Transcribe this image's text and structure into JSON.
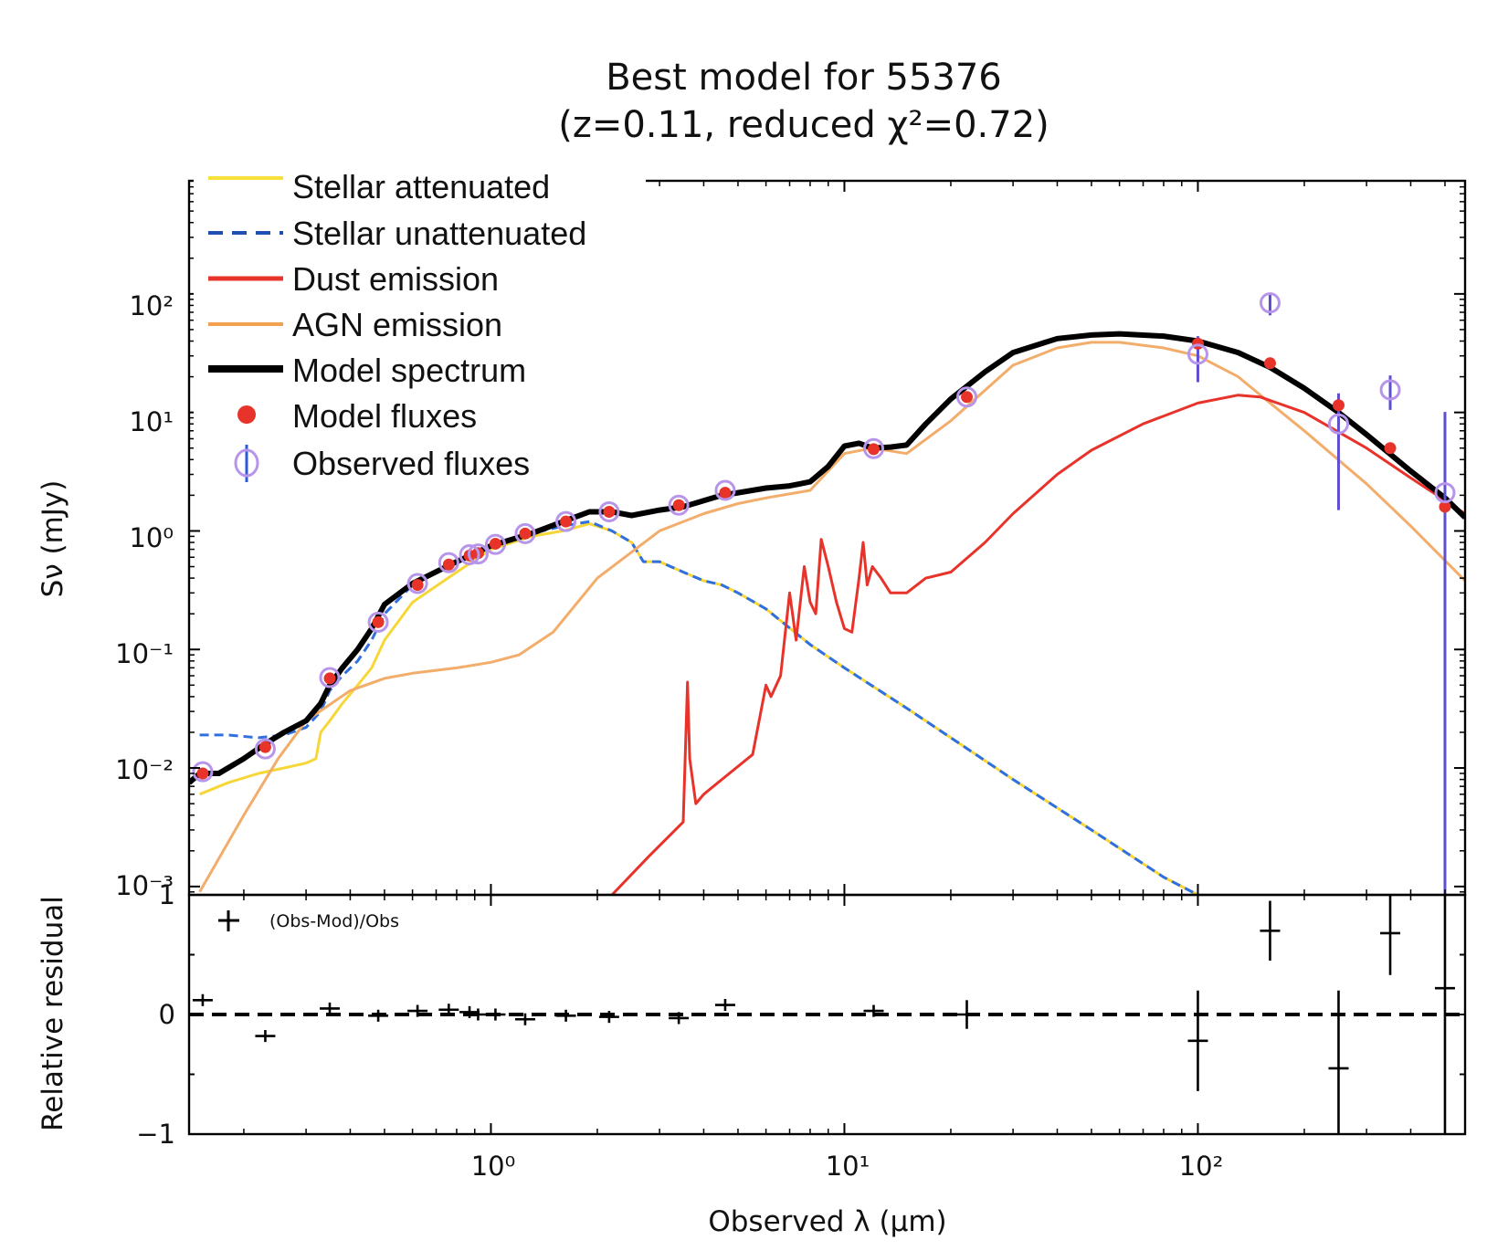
{
  "chart_data": {
    "type": "line",
    "title": "Best model for 55376",
    "subtitle": "(z=0.11, reduced χ²=0.72)",
    "xlabel": "Observed λ (μm)",
    "xscale": "log",
    "xlim": [
      0.14,
      570
    ],
    "x_tick_labels": [
      "10⁰",
      "10¹",
      "10²"
    ],
    "main_panel": {
      "ylabel": "Sν (mJy)",
      "yscale": "log",
      "ylim": [
        0.00085,
        900
      ],
      "y_tick_labels": [
        "10⁻³",
        "10⁻²",
        "10⁻¹",
        "10⁰",
        "10¹",
        "10²"
      ],
      "legend": {
        "location": "upper-left",
        "entries": [
          "Stellar attenuated",
          "Stellar unattenuated",
          "Dust emission",
          "AGN emission",
          "Model spectrum",
          "Model fluxes",
          "Observed fluxes"
        ]
      },
      "series": [
        {
          "name": "Stellar unattenuated",
          "style": "dashed",
          "color": "#2f6fe0",
          "x": [
            0.15,
            0.18,
            0.22,
            0.26,
            0.3,
            0.33,
            0.35,
            0.38,
            0.42,
            0.46,
            0.5,
            0.6,
            0.8,
            1.0,
            1.3,
            1.6,
            1.9,
            2.2,
            2.5,
            2.7,
            3.0,
            3.5,
            4.0,
            4.5,
            5,
            6,
            8,
            10,
            15,
            20,
            30,
            50,
            80,
            100
          ],
          "y": [
            0.019,
            0.019,
            0.018,
            0.019,
            0.022,
            0.03,
            0.045,
            0.06,
            0.08,
            0.12,
            0.2,
            0.35,
            0.55,
            0.75,
            0.95,
            1.1,
            1.2,
            1.0,
            0.8,
            0.55,
            0.55,
            0.45,
            0.38,
            0.35,
            0.3,
            0.22,
            0.11,
            0.07,
            0.032,
            0.018,
            0.008,
            0.003,
            0.0012,
            0.00085
          ]
        },
        {
          "name": "Stellar attenuated",
          "style": "solid",
          "color": "#f7d638",
          "x": [
            0.15,
            0.18,
            0.22,
            0.26,
            0.3,
            0.32,
            0.33,
            0.35,
            0.38,
            0.42,
            0.46,
            0.5,
            0.6,
            0.8,
            1.0,
            1.3,
            1.6,
            1.9,
            2.2,
            2.5,
            2.7,
            3.0,
            3.5,
            4.0,
            4.5,
            5,
            6,
            8,
            10,
            15,
            20,
            30,
            50,
            80,
            100
          ],
          "y": [
            0.006,
            0.0075,
            0.009,
            0.01,
            0.011,
            0.012,
            0.02,
            0.025,
            0.035,
            0.05,
            0.07,
            0.12,
            0.25,
            0.45,
            0.7,
            0.9,
            1.0,
            1.15,
            1.0,
            0.8,
            0.55,
            0.55,
            0.45,
            0.38,
            0.35,
            0.3,
            0.22,
            0.11,
            0.07,
            0.032,
            0.018,
            0.008,
            0.003,
            0.0012,
            0.00085
          ]
        },
        {
          "name": "AGN emission",
          "style": "solid",
          "color": "#f3ad6b",
          "x": [
            0.15,
            0.2,
            0.25,
            0.3,
            0.4,
            0.5,
            0.6,
            0.8,
            1.0,
            1.2,
            1.5,
            2,
            3,
            4,
            5,
            6,
            8,
            10,
            12,
            15,
            20,
            30,
            40,
            50,
            60,
            80,
            100,
            130,
            160,
            200,
            300,
            400,
            570
          ],
          "y": [
            0.0009,
            0.004,
            0.012,
            0.025,
            0.045,
            0.057,
            0.063,
            0.07,
            0.078,
            0.09,
            0.14,
            0.4,
            1.0,
            1.4,
            1.7,
            1.9,
            2.2,
            4.5,
            5.0,
            4.5,
            8.5,
            25,
            35,
            39,
            39,
            35,
            30,
            20,
            12,
            7,
            2.5,
            1.1,
            0.38
          ]
        },
        {
          "name": "Dust emission",
          "style": "solid",
          "color": "#e8332a",
          "x": [
            2.2,
            2.8,
            3.5,
            3.6,
            3.65,
            3.8,
            4.0,
            4.5,
            5.5,
            6.0,
            6.2,
            6.6,
            7.0,
            7.3,
            7.7,
            8.0,
            8.3,
            8.6,
            9.0,
            9.5,
            10.0,
            10.5,
            11.0,
            11.3,
            11.6,
            12.0,
            12.7,
            13.5,
            15,
            17,
            20,
            25,
            30,
            40,
            50,
            70,
            100,
            130,
            150,
            200,
            300,
            400,
            570
          ],
          "y": [
            0.00085,
            0.0018,
            0.0035,
            0.053,
            0.012,
            0.005,
            0.006,
            0.008,
            0.013,
            0.05,
            0.04,
            0.06,
            0.3,
            0.12,
            0.5,
            0.25,
            0.2,
            0.85,
            0.5,
            0.25,
            0.15,
            0.14,
            0.4,
            0.8,
            0.35,
            0.5,
            0.4,
            0.3,
            0.3,
            0.4,
            0.45,
            0.8,
            1.4,
            3.0,
            4.8,
            8,
            12,
            14,
            13.5,
            10,
            5,
            2.8,
            1.4
          ]
        },
        {
          "name": "Model spectrum",
          "style": "solid",
          "color": "#000000",
          "x": [
            0.14,
            0.15,
            0.17,
            0.2,
            0.23,
            0.26,
            0.3,
            0.33,
            0.35,
            0.38,
            0.42,
            0.46,
            0.5,
            0.6,
            0.8,
            1.0,
            1.3,
            1.6,
            1.9,
            2.2,
            2.5,
            3.0,
            3.5,
            4.0,
            4.5,
            5,
            6,
            7,
            7.5,
            8,
            9,
            10,
            11,
            12,
            13.5,
            15,
            17,
            20,
            25,
            30,
            40,
            50,
            60,
            80,
            100,
            130,
            160,
            200,
            250,
            300,
            400,
            500,
            570
          ],
          "y": [
            0.0075,
            0.009,
            0.009,
            0.012,
            0.016,
            0.02,
            0.025,
            0.035,
            0.05,
            0.07,
            0.1,
            0.15,
            0.24,
            0.36,
            0.55,
            0.75,
            0.95,
            1.2,
            1.45,
            1.45,
            1.35,
            1.5,
            1.6,
            1.8,
            2.0,
            2.1,
            2.3,
            2.4,
            2.5,
            2.6,
            3.5,
            5.2,
            5.5,
            5.0,
            5.1,
            5.3,
            8,
            13,
            22,
            32,
            42,
            45,
            46,
            44,
            40,
            32,
            24,
            16,
            10,
            6.5,
            3.2,
            1.9,
            1.3
          ]
        }
      ],
      "model_fluxes": {
        "color": "#e8332a",
        "x": [
          0.153,
          0.23,
          0.35,
          0.48,
          0.62,
          0.76,
          0.87,
          0.92,
          1.03,
          1.25,
          1.63,
          2.16,
          3.4,
          4.6,
          12.1,
          22.2,
          100,
          160,
          250,
          350,
          500
        ],
        "y": [
          0.009,
          0.015,
          0.057,
          0.17,
          0.35,
          0.52,
          0.62,
          0.65,
          0.78,
          0.95,
          1.2,
          1.45,
          1.65,
          2.1,
          4.9,
          13.5,
          38,
          26,
          11.5,
          5.0,
          1.6
        ]
      },
      "observed_fluxes": {
        "color": "#b695ea",
        "x": [
          0.153,
          0.23,
          0.35,
          0.48,
          0.62,
          0.76,
          0.87,
          0.92,
          1.03,
          1.25,
          1.63,
          2.16,
          3.4,
          4.6,
          12.1,
          22.2,
          100,
          160,
          250,
          350,
          500
        ],
        "y": [
          0.0093,
          0.0145,
          0.058,
          0.17,
          0.36,
          0.54,
          0.63,
          0.64,
          0.77,
          0.95,
          1.2,
          1.45,
          1.65,
          2.2,
          4.95,
          13.5,
          31,
          84,
          8.0,
          15.5,
          2.1
        ],
        "err_low": [
          0,
          0,
          0,
          0,
          0,
          0,
          0,
          0,
          0,
          0,
          0,
          0,
          0,
          0,
          0,
          0,
          13,
          18,
          6.5,
          5,
          2.1
        ],
        "err_high": [
          0,
          0,
          0,
          0,
          0,
          0,
          0,
          0,
          0,
          0,
          0,
          0,
          0,
          0,
          0,
          0,
          13,
          18,
          6.5,
          5,
          8
        ]
      }
    },
    "residual_panel": {
      "ylabel": "Relative residual",
      "ylim": [
        -1,
        1
      ],
      "y_tick_labels": [
        "−1",
        "0",
        "1"
      ],
      "legend": {
        "location": "upper-left",
        "entries": [
          "(Obs-Mod)/Obs"
        ]
      },
      "x": [
        0.153,
        0.23,
        0.35,
        0.48,
        0.62,
        0.76,
        0.87,
        0.92,
        1.03,
        1.25,
        1.63,
        2.16,
        3.4,
        4.6,
        12.1,
        22.2,
        100,
        160,
        250,
        350,
        500
      ],
      "y": [
        0.12,
        -0.18,
        0.05,
        -0.01,
        0.03,
        0.04,
        0.02,
        0.0,
        0.0,
        -0.04,
        -0.01,
        -0.02,
        -0.03,
        0.08,
        0.03,
        0.0,
        -0.22,
        0.7,
        -0.45,
        0.68,
        0.22
      ],
      "err": [
        0,
        0,
        0,
        0,
        0,
        0,
        0,
        0,
        0,
        0,
        0,
        0,
        0.05,
        0,
        0,
        0.12,
        0.42,
        0.25,
        0.65,
        0.35,
        1.9
      ],
      "zero_line": "dashed"
    }
  }
}
